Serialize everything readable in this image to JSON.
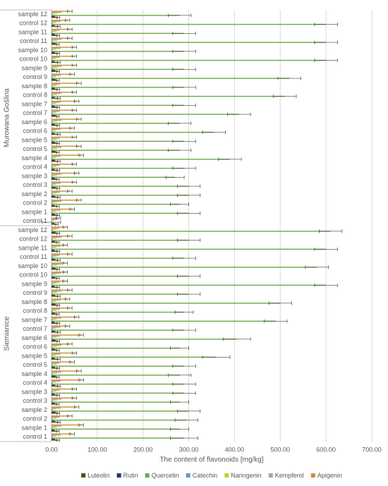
{
  "chart_data": {
    "type": "hbar",
    "x_label": "The content of flavonoids [mg/kg]",
    "groups": [
      "Siemianice",
      "Murowana Goślina"
    ],
    "categories": [
      "control 1",
      "sample 1",
      "control 2",
      "sample 2",
      "control 3",
      "sample 3",
      "control 4",
      "sample 4",
      "control 5",
      "sample 5",
      "control 6",
      "sample 6",
      "control 7",
      "sample 7",
      "control 8",
      "sample 8",
      "control 9",
      "sample 9",
      "control 10",
      "sample 10",
      "control 11",
      "sample 11",
      "control 12",
      "sample 12",
      "control 1",
      "sample 1",
      "control 2",
      "sample 2",
      "control 3",
      "sample 3",
      "control 4",
      "sample 4",
      "control 5",
      "sample 5",
      "control 6",
      "sample 6",
      "control 7",
      "sample 7",
      "control 8",
      "sample 8",
      "control 9",
      "sample 9",
      "control 10",
      "sample 10",
      "control 11",
      "sample 11",
      "control 12",
      "sample 12"
    ],
    "xlim": [
      0,
      700
    ],
    "xticks": [
      {
        "value": 0,
        "label": "0.00"
      },
      {
        "value": 100,
        "label": "100.00"
      },
      {
        "value": 200,
        "label": "200.00"
      },
      {
        "value": 300,
        "label": "300.00"
      },
      {
        "value": 400,
        "label": "400.00"
      },
      {
        "value": 500,
        "label": "500.00"
      },
      {
        "value": 600,
        "label": "600.00"
      },
      {
        "value": 700,
        "label": "700.00"
      }
    ],
    "grid": true,
    "legend": "bottom",
    "series": [
      {
        "name": "Luteolin",
        "color": "#5c4a1c",
        "values": [
          15,
          14,
          16,
          15,
          14,
          15,
          16,
          14,
          15,
          16,
          14,
          15,
          16,
          15,
          14,
          15,
          16,
          15,
          14,
          15,
          16,
          15,
          14,
          15,
          12,
          15,
          14,
          16,
          15,
          14,
          15,
          16,
          14,
          15,
          16,
          15,
          14,
          15,
          16,
          15,
          14,
          15,
          16,
          15,
          14,
          15,
          16,
          15
        ],
        "errors": [
          3,
          3,
          3,
          3,
          3,
          3,
          3,
          3,
          3,
          3,
          3,
          3,
          3,
          3,
          3,
          3,
          3,
          3,
          3,
          3,
          3,
          3,
          3,
          3,
          3,
          3,
          3,
          3,
          3,
          3,
          3,
          3,
          3,
          3,
          3,
          3,
          3,
          3,
          3,
          3,
          3,
          3,
          3,
          3,
          3,
          3,
          3,
          3
        ]
      },
      {
        "name": "Rutin",
        "color": "#1f3864",
        "values": [
          8,
          7,
          8,
          9,
          8,
          7,
          8,
          9,
          8,
          7,
          8,
          9,
          8,
          7,
          8,
          9,
          8,
          7,
          8,
          9,
          8,
          7,
          8,
          9,
          6,
          8,
          7,
          8,
          9,
          8,
          7,
          8,
          9,
          8,
          7,
          8,
          9,
          8,
          7,
          8,
          9,
          8,
          7,
          8,
          9,
          8,
          7,
          8
        ]
      },
      {
        "name": "Quercetin",
        "color": "#70ad47",
        "values": [
          290,
          280,
          295,
          300,
          280,
          290,
          290,
          280,
          290,
          360,
          280,
          405,
          290,
          490,
          290,
          500,
          300,
          600,
          300,
          580,
          290,
          600,
          300,
          610,
          0,
          300,
          280,
          300,
          300,
          270,
          290,
          390,
          280,
          290,
          355,
          280,
          410,
          290,
          510,
          290,
          520,
          290,
          600,
          290,
          600,
          290,
          600,
          280
        ],
        "errors": [
          30,
          20,
          25,
          25,
          20,
          25,
          25,
          25,
          25,
          30,
          20,
          30,
          25,
          25,
          20,
          25,
          25,
          25,
          25,
          25,
          25,
          25,
          25,
          25,
          20,
          25,
          20,
          25,
          25,
          20,
          25,
          25,
          25,
          25,
          25,
          25,
          25,
          25,
          25,
          25,
          25,
          25,
          25,
          25,
          25,
          25,
          25,
          25
        ]
      },
      {
        "name": "Catechin",
        "color": "#5b9bd5",
        "values": [
          3,
          3,
          3,
          3,
          3,
          3,
          3,
          3,
          3,
          3,
          3,
          3,
          3,
          3,
          3,
          3,
          3,
          3,
          3,
          3,
          3,
          3,
          3,
          3,
          2,
          3,
          3,
          3,
          3,
          3,
          3,
          3,
          3,
          3,
          3,
          3,
          3,
          3,
          3,
          3,
          3,
          3,
          3,
          3,
          3,
          3,
          3,
          3
        ]
      },
      {
        "name": "Naringenin",
        "color": "#c9c93a",
        "values": [
          10,
          12,
          11,
          10,
          12,
          11,
          10,
          12,
          11,
          10,
          12,
          11,
          10,
          12,
          11,
          10,
          12,
          11,
          10,
          12,
          11,
          10,
          12,
          11,
          8,
          10,
          12,
          11,
          10,
          12,
          11,
          10,
          12,
          11,
          10,
          12,
          11,
          10,
          12,
          11,
          10,
          12,
          11,
          10,
          12,
          11,
          10,
          12
        ]
      },
      {
        "name": "Kempferol",
        "color": "#a5a5a5",
        "values": [
          20,
          22,
          18,
          20,
          22,
          18,
          20,
          22,
          18,
          20,
          22,
          18,
          20,
          22,
          18,
          20,
          22,
          18,
          20,
          22,
          18,
          20,
          22,
          18,
          15,
          20,
          22,
          18,
          20,
          22,
          18,
          20,
          22,
          18,
          20,
          22,
          18,
          20,
          22,
          18,
          20,
          22,
          18,
          20,
          22,
          18,
          20,
          22
        ]
      },
      {
        "name": "Apigenin",
        "color": "#d98a3c",
        "values": [
          45,
          65,
          40,
          55,
          50,
          50,
          65,
          60,
          45,
          50,
          40,
          65,
          35,
          55,
          40,
          35,
          40,
          30,
          30,
          30,
          40,
          30,
          40,
          30,
          15,
          45,
          60,
          40,
          50,
          55,
          50,
          65,
          60,
          50,
          45,
          60,
          50,
          55,
          50,
          60,
          45,
          50,
          50,
          50,
          40,
          40,
          35,
          40
        ],
        "errors": [
          5,
          5,
          5,
          5,
          5,
          5,
          5,
          5,
          5,
          5,
          5,
          5,
          5,
          5,
          5,
          5,
          5,
          5,
          5,
          5,
          5,
          5,
          5,
          5,
          5,
          5,
          5,
          5,
          5,
          5,
          5,
          5,
          5,
          5,
          5,
          5,
          5,
          5,
          5,
          5,
          5,
          5,
          5,
          5,
          5,
          5,
          5,
          5
        ]
      }
    ]
  }
}
